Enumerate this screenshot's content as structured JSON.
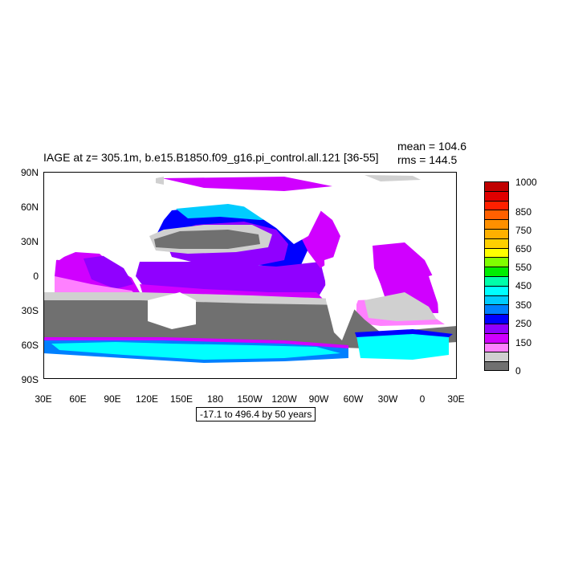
{
  "title": "IAGE at z= 305.1m, b.e15.B1850.f09_g16.pi_control.all.121 [36-55]",
  "stats": {
    "mean": "mean = 104.6",
    "rms": "rms = 144.5"
  },
  "range_note": "-17.1 to 496.4 by 50 years",
  "map_data": {
    "variable": "IAGE",
    "depth": "305.1m",
    "y_ticks": [
      "90N",
      "60N",
      "30N",
      "0",
      "30S",
      "60S",
      "90S"
    ],
    "x_ticks": [
      "30E",
      "60E",
      "90E",
      "120E",
      "150E",
      "180",
      "150W",
      "120W",
      "90W",
      "60W",
      "30W",
      "0",
      "30E"
    ],
    "legend": {
      "labels": [
        "1000",
        "850",
        "750",
        "650",
        "550",
        "450",
        "350",
        "250",
        "150",
        "0"
      ],
      "colors": [
        "#c00000",
        "#e00000",
        "#ff2000",
        "#ff6000",
        "#ff9000",
        "#ffb000",
        "#ffd000",
        "#ffff00",
        "#80ff00",
        "#00ee00",
        "#00ffaa",
        "#00ffff",
        "#00ccff",
        "#0080ff",
        "#0000ff",
        "#9000ff",
        "#d000ff",
        "#ff80ff",
        "#d0d0d0",
        "#707070"
      ]
    }
  }
}
